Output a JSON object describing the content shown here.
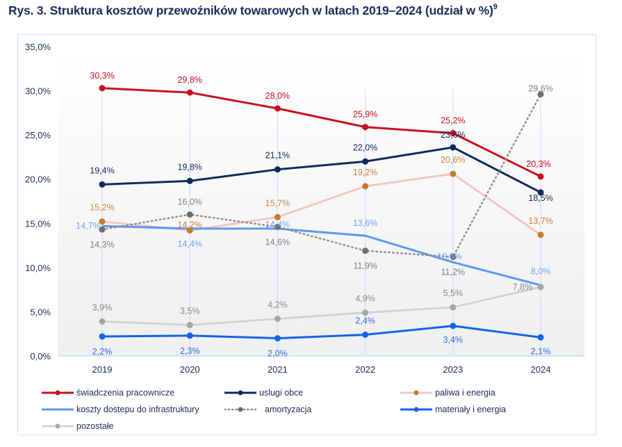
{
  "title": {
    "text": "Rys. 3.  Struktura kosztów przewoźników towarowych w latach 2019–2024 (udział w %)",
    "footnote": "9"
  },
  "chart_data": {
    "type": "line",
    "title": "Struktura kosztów przewoźników towarowych w latach 2019–2024 (udział w %)",
    "xlabel": "",
    "ylabel": "",
    "x": [
      "2019",
      "2020",
      "2021",
      "2022",
      "2023",
      "2024"
    ],
    "ylim": [
      0,
      35
    ],
    "yticks": [
      0,
      5,
      10,
      15,
      20,
      25,
      30,
      35
    ],
    "ytick_labels": [
      "0,0%",
      "5,0%",
      "10,0%",
      "15,0%",
      "20,0%",
      "25,0%",
      "30,0%",
      "35,0%"
    ],
    "grid": "vertical lines at categories",
    "legend_position": "bottom",
    "series": [
      {
        "name": "świadczenia pracownicze",
        "color": "#c8101e",
        "label_color": "#c8101e",
        "marker_color": "#c8101e",
        "style": "solid",
        "values": [
          30.3,
          29.8,
          28.0,
          25.9,
          25.2,
          20.3
        ],
        "labels": [
          "30,3%",
          "29,8%",
          "28,0%",
          "25,9%",
          "25,2%",
          "20,3%"
        ]
      },
      {
        "name": "uslugi obce",
        "color": "#0f2a5e",
        "label_color": "#0f2a5e",
        "marker_color": "#0f2a5e",
        "style": "solid",
        "values": [
          19.4,
          19.8,
          21.1,
          22.0,
          23.6,
          18.5
        ],
        "labels": [
          "19,4%",
          "19,8%",
          "21,1%",
          "22,0%",
          "23,6%",
          "18,5%"
        ]
      },
      {
        "name": "paliwa i energia",
        "color": "#f6c4c4",
        "label_color": "#c8833a",
        "marker_color": "#c47a32",
        "style": "solid",
        "values": [
          15.2,
          14.2,
          15.7,
          19.2,
          20.6,
          13.7
        ],
        "labels": [
          "15,2%",
          "14,2%",
          "15,7%",
          "19,2%",
          "20,6%",
          "13,7%"
        ]
      },
      {
        "name": "koszty dostepu do infrastruktury",
        "color": "#5b97f0",
        "label_color": "#6ea3f2",
        "marker_color": null,
        "style": "solid",
        "values": [
          14.7,
          14.4,
          14.4,
          13.6,
          10.6,
          8.0
        ],
        "labels": [
          "14,7%",
          "14,4%",
          "14,4%",
          "13,6%",
          "10,6%",
          "8,0%"
        ]
      },
      {
        "name": "amortyzacja",
        "color": "#8c8c8c",
        "label_color": "#7f7f7f",
        "marker_color": "#6e6e6e",
        "style": "dotted",
        "values": [
          14.3,
          16.0,
          14.6,
          11.9,
          11.2,
          29.6
        ],
        "labels": [
          "14,3%",
          "16,0%",
          "14,6%",
          "11,9%",
          "11,2%",
          "29,6%"
        ]
      },
      {
        "name": "materiały i energia",
        "color": "#1264e8",
        "label_color": "#2b6fe0",
        "marker_color": "#1264e8",
        "style": "solid",
        "values": [
          2.2,
          2.3,
          2.0,
          2.4,
          3.4,
          2.1
        ],
        "labels": [
          "2,2%",
          "2,3%",
          "2,0%",
          "2,4%",
          "3,4%",
          "2,1%"
        ]
      },
      {
        "name": "pozostałe",
        "color": "#d3d3d3",
        "label_color": "#8a8a8a",
        "marker_color": "#a6a6a6",
        "style": "solid",
        "values": [
          3.9,
          3.5,
          4.2,
          4.9,
          5.5,
          7.8
        ],
        "labels": [
          "3,9%",
          "3,5%",
          "4,2%",
          "4,9%",
          "5,5%",
          "7,8%"
        ]
      }
    ]
  },
  "legend": {
    "items": [
      "świadczenia pracownicze",
      "uslugi obce",
      "paliwa i energia",
      "koszty dostepu do infrastruktury",
      "amortyzacja",
      "materiały i energia",
      "pozostałe"
    ]
  }
}
